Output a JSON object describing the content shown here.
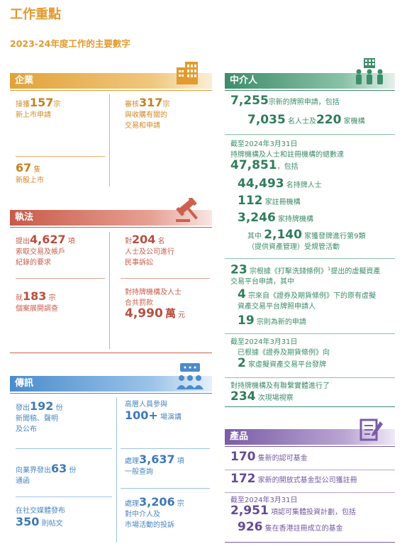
{
  "page": {
    "title": "工作重點",
    "subtitle": "2023-24年度工作的主要數字"
  },
  "colors": {
    "orange": "#e39b2d",
    "red": "#cc6150",
    "blue": "#4a8ccc",
    "green": "#3d8c6a",
    "purple": "#7a5ca6"
  },
  "corporate": {
    "header": "企業",
    "icon": "building-icon",
    "b1": {
      "pre": "接獲",
      "num": "157",
      "post": "宗",
      "line2": "新上市申請"
    },
    "b2": {
      "pre": "審核",
      "num": "317",
      "post": "宗",
      "line2": "與收購有關的",
      "line3": "交易和申請"
    },
    "b3": {
      "num": "67",
      "post": "隻",
      "line2": "新股上市"
    }
  },
  "enforcement": {
    "header": "執法",
    "icon": "gavel-icon",
    "b1": {
      "pre": "提出",
      "num": "4,627",
      "post": "項",
      "line2": "索取交易及帳戶",
      "line3": "紀錄的要求"
    },
    "b2": {
      "pre": "對",
      "num": "204",
      "post": "名",
      "line2": "人士及公司進行",
      "line3": "民事訴訟"
    },
    "b3": {
      "pre": "就",
      "num": "183",
      "post": "宗",
      "line2": "個案展開調查"
    },
    "b4": {
      "line1": "對持牌機構及人士",
      "line2": "合共罰款",
      "num": "4,990",
      "unit": "萬",
      "post": "元"
    }
  },
  "communications": {
    "header": "傳訊",
    "icon": "audience-icon",
    "b1": {
      "pre": "發出",
      "num": "192",
      "post": "份",
      "line2": "新聞稿、聲明",
      "line3": "及公布"
    },
    "b2": {
      "line1": "高層人員參與",
      "num": "100+",
      "post": "場演講"
    },
    "b3": {
      "pre": "向業界發出",
      "num": "63",
      "post": "份",
      "line2": "通函"
    },
    "b4": {
      "pre": "處理",
      "num": "3,637",
      "post": "項",
      "line2": "一般查詢"
    },
    "b5": {
      "line1": "在社交媒體發布",
      "num": "350",
      "post": "則帖文"
    },
    "b6": {
      "pre": "處理",
      "num": "3,206",
      "post": "宗",
      "line2": "對中介人及",
      "line3": "市場活動的投訴"
    }
  },
  "intermediaries": {
    "header": "中介人",
    "icon": "people-icon",
    "l1": {
      "num": "7,255",
      "post": "宗新的牌照申請，包括"
    },
    "l2": {
      "num1": "7,035",
      "post1": "名人士及",
      "num2": "220",
      "post2": "家機構"
    },
    "asof1": "截至2024年3月31日",
    "desc1": "持牌機構及人士和註冊機構的總數達",
    "l3": {
      "num": "47,851",
      "post": "，包括"
    },
    "l4": {
      "num": "44,493",
      "post": "名持牌人士"
    },
    "l5": {
      "num": "112",
      "post": "家註冊機構"
    },
    "l6": {
      "num": "3,246",
      "post": "家持牌機構"
    },
    "l7": {
      "pre": "其中",
      "num": "2,140",
      "post": "家獲發牌進行第9類",
      "line2": "（提供資產管理）受規管活動"
    },
    "l8": {
      "num": "23",
      "post": "宗根據《打擊洗錢條例》",
      "sup": "1",
      "post2": "提出的虛擬資產",
      "line2": "交易平台申請，其中"
    },
    "l9": {
      "num": "4",
      "post": "宗來自《證券及期貨條例》下的原有虛擬",
      "line2": "資產交易平台牌照申請人"
    },
    "l10": {
      "num": "19",
      "post": "宗則為新的申請"
    },
    "asof2": "截至2024年3月31日",
    "l11": {
      "line1": "已根據《證券及期貨條例》向",
      "num": "2",
      "post": "家虛擬資產交易平台發牌"
    },
    "l12": {
      "line1": "對持牌機構及有聯繫實體進行了",
      "num": "234",
      "post": "次現場視察"
    }
  },
  "products": {
    "header": "產品",
    "icon": "document-icon",
    "l1": {
      "num": "170",
      "post": "隻新的認可基金"
    },
    "l2": {
      "num": "172",
      "post": "家新的開放式基金型公司獲註冊"
    },
    "asof": "截至2024年3月31日",
    "l3": {
      "num": "2,951",
      "post": "項認可集體投資計劃，包括"
    },
    "l4": {
      "num": "926",
      "post": "隻在香港註冊成立的基金"
    }
  }
}
